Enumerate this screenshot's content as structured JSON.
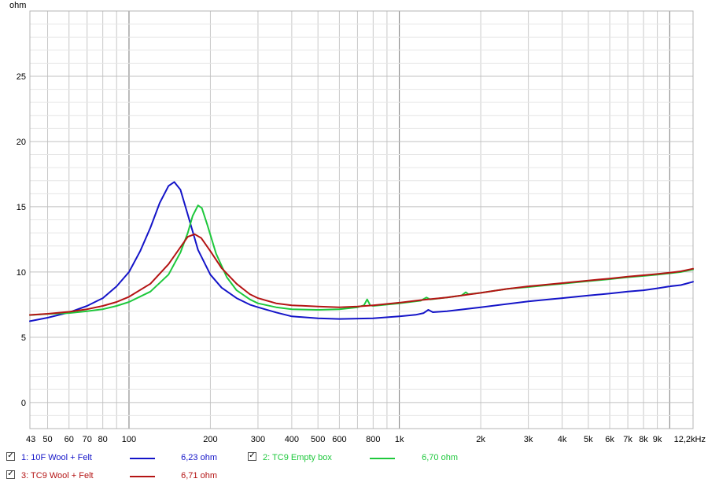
{
  "chart_data": {
    "type": "line",
    "ylabel": "ohm",
    "xscale": "log",
    "xlim": [
      43,
      12200
    ],
    "ylim": [
      -2,
      30
    ],
    "yticks": [
      {
        "v": 0,
        "label": "0"
      },
      {
        "v": 5,
        "label": "5"
      },
      {
        "v": 10,
        "label": "10"
      },
      {
        "v": 15,
        "label": "15"
      },
      {
        "v": 20,
        "label": "20"
      },
      {
        "v": 25,
        "label": "25"
      }
    ],
    "xticks": [
      {
        "v": 43,
        "label": "43"
      },
      {
        "v": 50,
        "label": "50"
      },
      {
        "v": 60,
        "label": "60"
      },
      {
        "v": 70,
        "label": "70"
      },
      {
        "v": 80,
        "label": "80"
      },
      {
        "v": 100,
        "label": "100"
      },
      {
        "v": 200,
        "label": "200"
      },
      {
        "v": 300,
        "label": "300"
      },
      {
        "v": 400,
        "label": "400"
      },
      {
        "v": 500,
        "label": "500"
      },
      {
        "v": 600,
        "label": "600"
      },
      {
        "v": 800,
        "label": "800"
      },
      {
        "v": 1000,
        "label": "1k"
      },
      {
        "v": 2000,
        "label": "2k"
      },
      {
        "v": 3000,
        "label": "3k"
      },
      {
        "v": 4000,
        "label": "4k"
      },
      {
        "v": 5000,
        "label": "5k"
      },
      {
        "v": 6000,
        "label": "6k"
      },
      {
        "v": 7000,
        "label": "7k"
      },
      {
        "v": 8000,
        "label": "8k"
      },
      {
        "v": 9000,
        "label": "9k"
      },
      {
        "v": 12200,
        "label": "12,2kHz"
      }
    ],
    "grid": true,
    "series": [
      {
        "name": "1: 10F Wool + Felt",
        "color": "#1414c8",
        "readout": "6,23 ohm",
        "points": [
          [
            43,
            6.23
          ],
          [
            50,
            6.5
          ],
          [
            60,
            6.9
          ],
          [
            70,
            7.4
          ],
          [
            80,
            8.0
          ],
          [
            90,
            8.9
          ],
          [
            100,
            10.0
          ],
          [
            110,
            11.6
          ],
          [
            120,
            13.4
          ],
          [
            130,
            15.3
          ],
          [
            140,
            16.6
          ],
          [
            147,
            16.9
          ],
          [
            155,
            16.3
          ],
          [
            165,
            14.4
          ],
          [
            180,
            11.7
          ],
          [
            200,
            9.8
          ],
          [
            220,
            8.8
          ],
          [
            250,
            8.0
          ],
          [
            280,
            7.5
          ],
          [
            300,
            7.3
          ],
          [
            350,
            6.9
          ],
          [
            400,
            6.6
          ],
          [
            500,
            6.45
          ],
          [
            600,
            6.4
          ],
          [
            800,
            6.45
          ],
          [
            1000,
            6.6
          ],
          [
            1150,
            6.72
          ],
          [
            1230,
            6.85
          ],
          [
            1280,
            7.1
          ],
          [
            1330,
            6.92
          ],
          [
            1500,
            7.0
          ],
          [
            2000,
            7.3
          ],
          [
            3000,
            7.75
          ],
          [
            4000,
            8.0
          ],
          [
            5000,
            8.2
          ],
          [
            6000,
            8.35
          ],
          [
            7000,
            8.5
          ],
          [
            8000,
            8.6
          ],
          [
            9000,
            8.75
          ],
          [
            10000,
            8.9
          ],
          [
            11000,
            9.0
          ],
          [
            12200,
            9.25
          ]
        ]
      },
      {
        "name": "2: TC9 Empty box",
        "color": "#1ec83c",
        "readout": "6,70 ohm",
        "points": [
          [
            43,
            6.7
          ],
          [
            50,
            6.78
          ],
          [
            60,
            6.85
          ],
          [
            70,
            7.0
          ],
          [
            80,
            7.15
          ],
          [
            90,
            7.4
          ],
          [
            100,
            7.7
          ],
          [
            120,
            8.5
          ],
          [
            140,
            9.8
          ],
          [
            155,
            11.5
          ],
          [
            165,
            13.0
          ],
          [
            172,
            14.3
          ],
          [
            180,
            15.1
          ],
          [
            186,
            14.9
          ],
          [
            195,
            13.6
          ],
          [
            210,
            11.4
          ],
          [
            230,
            9.6
          ],
          [
            250,
            8.6
          ],
          [
            280,
            7.9
          ],
          [
            300,
            7.6
          ],
          [
            350,
            7.3
          ],
          [
            400,
            7.15
          ],
          [
            500,
            7.1
          ],
          [
            600,
            7.15
          ],
          [
            700,
            7.3
          ],
          [
            740,
            7.45
          ],
          [
            760,
            7.9
          ],
          [
            780,
            7.45
          ],
          [
            800,
            7.4
          ],
          [
            1000,
            7.6
          ],
          [
            1200,
            7.8
          ],
          [
            1260,
            8.05
          ],
          [
            1300,
            7.9
          ],
          [
            1500,
            8.05
          ],
          [
            1700,
            8.2
          ],
          [
            1760,
            8.45
          ],
          [
            1800,
            8.3
          ],
          [
            2000,
            8.4
          ],
          [
            2500,
            8.7
          ],
          [
            3000,
            8.85
          ],
          [
            4000,
            9.1
          ],
          [
            5000,
            9.3
          ],
          [
            6000,
            9.45
          ],
          [
            7000,
            9.6
          ],
          [
            8000,
            9.7
          ],
          [
            9000,
            9.8
          ],
          [
            10000,
            9.9
          ],
          [
            11000,
            10.0
          ],
          [
            12200,
            10.2
          ]
        ]
      },
      {
        "name": "3: TC9 Wool + Felt",
        "color": "#b41414",
        "readout": "6,71 ohm",
        "points": [
          [
            43,
            6.71
          ],
          [
            50,
            6.8
          ],
          [
            60,
            6.95
          ],
          [
            70,
            7.15
          ],
          [
            80,
            7.4
          ],
          [
            90,
            7.7
          ],
          [
            100,
            8.1
          ],
          [
            120,
            9.1
          ],
          [
            140,
            10.6
          ],
          [
            155,
            11.9
          ],
          [
            165,
            12.7
          ],
          [
            175,
            12.9
          ],
          [
            185,
            12.6
          ],
          [
            200,
            11.6
          ],
          [
            220,
            10.3
          ],
          [
            250,
            9.1
          ],
          [
            280,
            8.3
          ],
          [
            300,
            8.0
          ],
          [
            350,
            7.6
          ],
          [
            400,
            7.45
          ],
          [
            500,
            7.35
          ],
          [
            600,
            7.3
          ],
          [
            700,
            7.35
          ],
          [
            800,
            7.45
          ],
          [
            1000,
            7.65
          ],
          [
            1200,
            7.85
          ],
          [
            1500,
            8.05
          ],
          [
            2000,
            8.4
          ],
          [
            2500,
            8.7
          ],
          [
            3000,
            8.9
          ],
          [
            4000,
            9.15
          ],
          [
            5000,
            9.35
          ],
          [
            6000,
            9.5
          ],
          [
            7000,
            9.65
          ],
          [
            8000,
            9.75
          ],
          [
            9000,
            9.85
          ],
          [
            10000,
            9.95
          ],
          [
            11000,
            10.05
          ],
          [
            12200,
            10.25
          ]
        ]
      }
    ]
  }
}
